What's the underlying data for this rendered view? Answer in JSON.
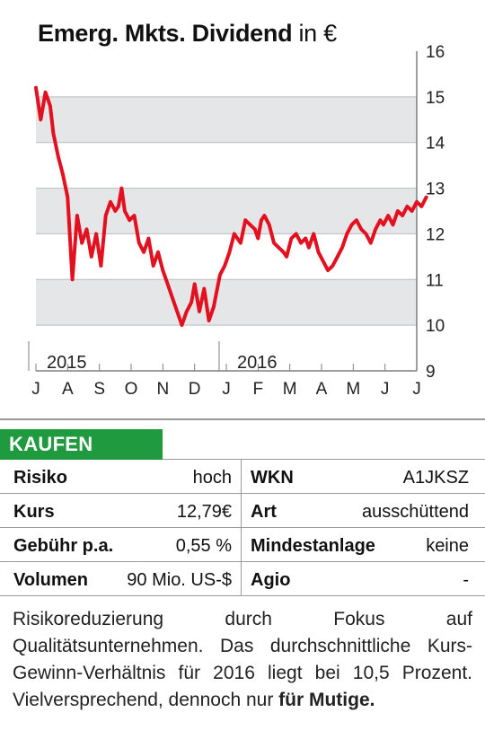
{
  "chart": {
    "title": "Emerg. Mkts. Dividend",
    "unit": "in €"
  },
  "chart_data": {
    "type": "line",
    "title": "Emerg. Mkts. Dividend in €",
    "ylim": [
      9,
      16
    ],
    "y_ticks": [
      9,
      10,
      11,
      12,
      13,
      14,
      15,
      16
    ],
    "x_tick_labels": [
      "J",
      "A",
      "S",
      "O",
      "N",
      "D",
      "J",
      "F",
      "M",
      "A",
      "M",
      "J",
      "J"
    ],
    "year_labels": [
      "2015",
      "2016"
    ],
    "grid": "alternating horizontal bands",
    "line_color": "#e3101f",
    "series": [
      {
        "x": [
          0.0,
          0.15,
          0.3,
          0.45,
          0.55,
          0.7,
          0.85,
          1.0,
          1.15,
          1.3,
          1.45,
          1.6,
          1.75,
          1.9,
          2.05,
          2.2,
          2.35,
          2.5,
          2.6,
          2.7,
          2.8,
          2.95,
          3.1,
          3.25,
          3.4,
          3.55,
          3.7,
          3.85,
          4.0,
          4.1,
          4.3,
          4.45,
          4.6,
          4.75,
          4.9,
          5.0,
          5.15,
          5.3,
          5.45,
          5.6,
          5.8,
          5.95,
          6.1,
          6.25,
          6.45,
          6.6,
          6.75,
          6.9,
          7.0,
          7.1,
          7.2,
          7.35,
          7.5,
          7.65,
          7.8,
          7.9,
          8.05,
          8.2,
          8.35,
          8.5,
          8.6,
          8.75,
          8.9,
          9.05,
          9.2,
          9.35,
          9.5,
          9.65,
          9.8,
          9.95,
          10.1,
          10.25,
          10.4,
          10.55,
          10.7,
          10.85,
          10.95,
          11.1,
          11.25,
          11.4,
          11.55,
          11.7,
          11.85,
          12.0,
          12.15,
          12.3
        ],
        "y": [
          15.2,
          14.5,
          15.1,
          14.8,
          14.2,
          13.7,
          13.3,
          12.8,
          11.0,
          12.4,
          11.8,
          12.1,
          11.5,
          12.0,
          11.3,
          12.4,
          12.7,
          12.5,
          12.6,
          13.0,
          12.5,
          12.3,
          12.4,
          11.8,
          11.6,
          11.9,
          11.3,
          11.6,
          11.2,
          11.0,
          10.6,
          10.3,
          10.0,
          10.3,
          10.5,
          10.9,
          10.3,
          10.8,
          10.1,
          10.4,
          11.1,
          11.3,
          11.6,
          12.0,
          11.8,
          12.3,
          12.2,
          12.1,
          11.9,
          12.3,
          12.4,
          12.2,
          11.8,
          11.7,
          11.6,
          11.5,
          11.9,
          12.0,
          11.8,
          11.9,
          11.7,
          12.0,
          11.6,
          11.4,
          11.2,
          11.3,
          11.5,
          11.7,
          12.0,
          12.2,
          12.3,
          12.1,
          12.0,
          11.8,
          12.1,
          12.3,
          12.2,
          12.4,
          12.2,
          12.5,
          12.4,
          12.6,
          12.5,
          12.7,
          12.6,
          12.8
        ]
      }
    ]
  },
  "verdict": "KAUFEN",
  "facts": [
    {
      "l1": "Risiko",
      "v1": "hoch",
      "l2": "WKN",
      "v2": "A1JKSZ"
    },
    {
      "l1": "Kurs",
      "v1": "12,79€",
      "l2": "Art",
      "v2": "ausschüttend"
    },
    {
      "l1": "Gebühr p.a.",
      "v1": "0,55 %",
      "l2": "Mindestanlage",
      "v2": "keine"
    },
    {
      "l1": "Volumen",
      "v1": "90 Mio. US-$",
      "l2": "Agio",
      "v2": "-"
    }
  ],
  "description": {
    "text": "Risikoreduzierung durch Fokus auf Qualitätsunternehmen. Das durchschnittliche Kurs-Gewinn-Verhältnis für 2016 liegt bei 10,5 Prozent. Vielversprechend, dennoch nur ",
    "emphasis": "für Mutige."
  }
}
